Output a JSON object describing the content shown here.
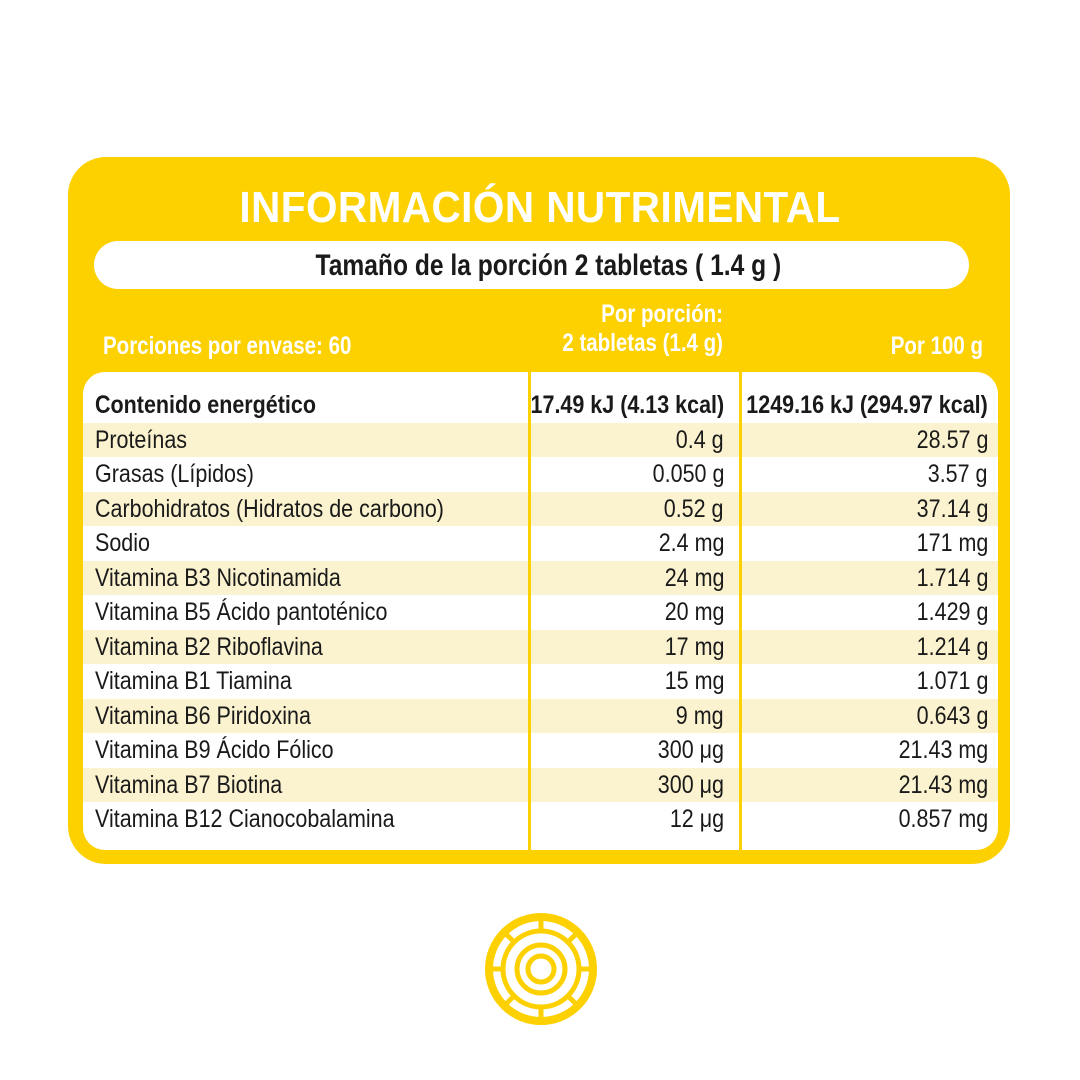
{
  "title": "INFORMACIÓN NUTRIMENTAL",
  "serving_size": "Tamaño de la porción 2 tabletas ( 1.4 g )",
  "headers": {
    "portions": "Porciones por envase: 60",
    "per_portion_line1": "Por porción:",
    "per_portion_line2": "2 tabletas (1.4 g)",
    "per_100": "Por 100 g"
  },
  "rows": [
    {
      "name": "Contenido energético",
      "per_portion": "17.49 kJ (4.13 kcal)",
      "per_100": "1249.16 kJ (294.97 kcal)"
    },
    {
      "name": "Proteínas",
      "per_portion": "0.4 g",
      "per_100": "28.57 g"
    },
    {
      "name": "Grasas (Lípidos)",
      "per_portion": "0.050 g",
      "per_100": "3.57 g"
    },
    {
      "name": "Carbohidratos (Hidratos de carbono)",
      "per_portion": "0.52 g",
      "per_100": "37.14 g"
    },
    {
      "name": "Sodio",
      "per_portion": "2.4 mg",
      "per_100": "171 mg"
    },
    {
      "name": "Vitamina B3 Nicotinamida",
      "per_portion": "24 mg",
      "per_100": "1.714 g"
    },
    {
      "name": "Vitamina B5 Ácido pantoténico",
      "per_portion": "20 mg",
      "per_100": "1.429 g"
    },
    {
      "name": "Vitamina B2 Riboflavina",
      "per_portion": "17 mg",
      "per_100": "1.214 g"
    },
    {
      "name": "Vitamina B1 Tiamina",
      "per_portion": "15 mg",
      "per_100": "1.071 g"
    },
    {
      "name": "Vitamina B6 Piridoxina",
      "per_portion": "9 mg",
      "per_100": "0.643 g"
    },
    {
      "name": "Vitamina B9 Ácido Fólico",
      "per_portion": "300 μg",
      "per_100": "21.43 mg"
    },
    {
      "name": "Vitamina B7 Biotina",
      "per_portion": "300 μg",
      "per_100": "21.43 mg"
    },
    {
      "name": "Vitamina B12 Cianocobalamina",
      "per_portion": "12 μg",
      "per_100": "0.857 mg"
    }
  ],
  "colors": {
    "accent": "#FDD000",
    "stripe": "#FBF3CF",
    "text": "#1a1a1a"
  },
  "icons": [
    "brand-logo-icon"
  ]
}
